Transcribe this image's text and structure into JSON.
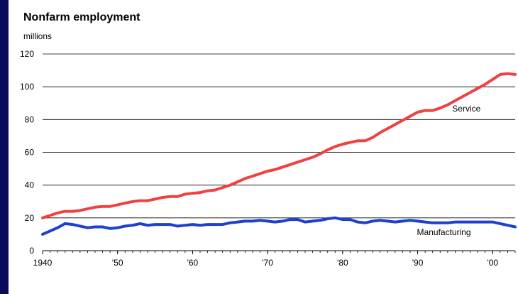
{
  "chart_data": {
    "type": "line",
    "title": "Nonfarm employment",
    "ylabel": "millions",
    "xlabel": "",
    "xlim": [
      1940,
      2003
    ],
    "ylim": [
      0,
      120
    ],
    "yticks": [
      0,
      20,
      40,
      60,
      80,
      100,
      120
    ],
    "xticks": [
      {
        "value": 1940,
        "label": "1940"
      },
      {
        "value": 1950,
        "label": "'50"
      },
      {
        "value": 1960,
        "label": "'60"
      },
      {
        "value": 1970,
        "label": "'70"
      },
      {
        "value": 1980,
        "label": "'80"
      },
      {
        "value": 1990,
        "label": "'90"
      },
      {
        "value": 2000,
        "label": "'00"
      }
    ],
    "grid": true,
    "series": [
      {
        "name": "Service",
        "color": "#f04040",
        "x": [
          1940,
          1941,
          1942,
          1943,
          1944,
          1945,
          1946,
          1947,
          1948,
          1949,
          1950,
          1951,
          1952,
          1953,
          1954,
          1955,
          1956,
          1957,
          1958,
          1959,
          1960,
          1961,
          1962,
          1963,
          1964,
          1965,
          1966,
          1967,
          1968,
          1969,
          1970,
          1971,
          1972,
          1973,
          1974,
          1975,
          1976,
          1977,
          1978,
          1979,
          1980,
          1981,
          1982,
          1983,
          1984,
          1985,
          1986,
          1987,
          1988,
          1989,
          1990,
          1991,
          1992,
          1993,
          1994,
          1995,
          1996,
          1997,
          1998,
          1999,
          2000,
          2001,
          2002,
          2003
        ],
        "values": [
          20,
          21.5,
          23,
          24,
          24,
          24.5,
          25.5,
          26.5,
          27,
          27,
          28,
          29,
          30,
          30.5,
          30.5,
          31.5,
          32.5,
          33,
          33,
          34.5,
          35,
          35.5,
          36.5,
          37,
          38.5,
          40,
          42,
          44,
          45.5,
          47,
          48.5,
          49.5,
          51,
          52.5,
          54,
          55.5,
          57,
          59,
          61.5,
          63.5,
          65,
          66,
          67,
          67,
          69,
          72,
          74.5,
          77,
          79.5,
          82,
          84.5,
          85.5,
          85.5,
          87,
          89,
          91.5,
          94,
          96.5,
          99,
          101.5,
          104.5,
          107.5,
          108,
          107.5
        ]
      },
      {
        "name": "Manufacturing",
        "color": "#1f3fcf",
        "x": [
          1940,
          1941,
          1942,
          1943,
          1944,
          1945,
          1946,
          1947,
          1948,
          1949,
          1950,
          1951,
          1952,
          1953,
          1954,
          1955,
          1956,
          1957,
          1958,
          1959,
          1960,
          1961,
          1962,
          1963,
          1964,
          1965,
          1966,
          1967,
          1968,
          1969,
          1970,
          1971,
          1972,
          1973,
          1974,
          1975,
          1976,
          1977,
          1978,
          1979,
          1980,
          1981,
          1982,
          1983,
          1984,
          1985,
          1986,
          1987,
          1988,
          1989,
          1990,
          1991,
          1992,
          1993,
          1994,
          1995,
          1996,
          1997,
          1998,
          1999,
          2000,
          2001,
          2002,
          2003
        ],
        "values": [
          10,
          12,
          14,
          16.5,
          16,
          15,
          14,
          14.5,
          14.5,
          13.5,
          14,
          15,
          15.5,
          16.5,
          15.5,
          16,
          16,
          16,
          15,
          15.5,
          16,
          15.5,
          16,
          16,
          16,
          17,
          17.5,
          18,
          18,
          18.5,
          18,
          17.5,
          18,
          19,
          19,
          17.5,
          18,
          18.5,
          19.5,
          20,
          19,
          19,
          17.5,
          17,
          18,
          18.5,
          18,
          17.5,
          18,
          18.5,
          18,
          17.5,
          17,
          17,
          17,
          17.5,
          17.5,
          17.5,
          17.5,
          17.5,
          17.5,
          16.5,
          15.5,
          14.5
        ]
      }
    ],
    "annotations": [
      {
        "text": "Service",
        "x": 1996.5,
        "y": 85
      },
      {
        "text": "Manufacturing",
        "x": 1993.5,
        "y": 9.5
      }
    ]
  }
}
